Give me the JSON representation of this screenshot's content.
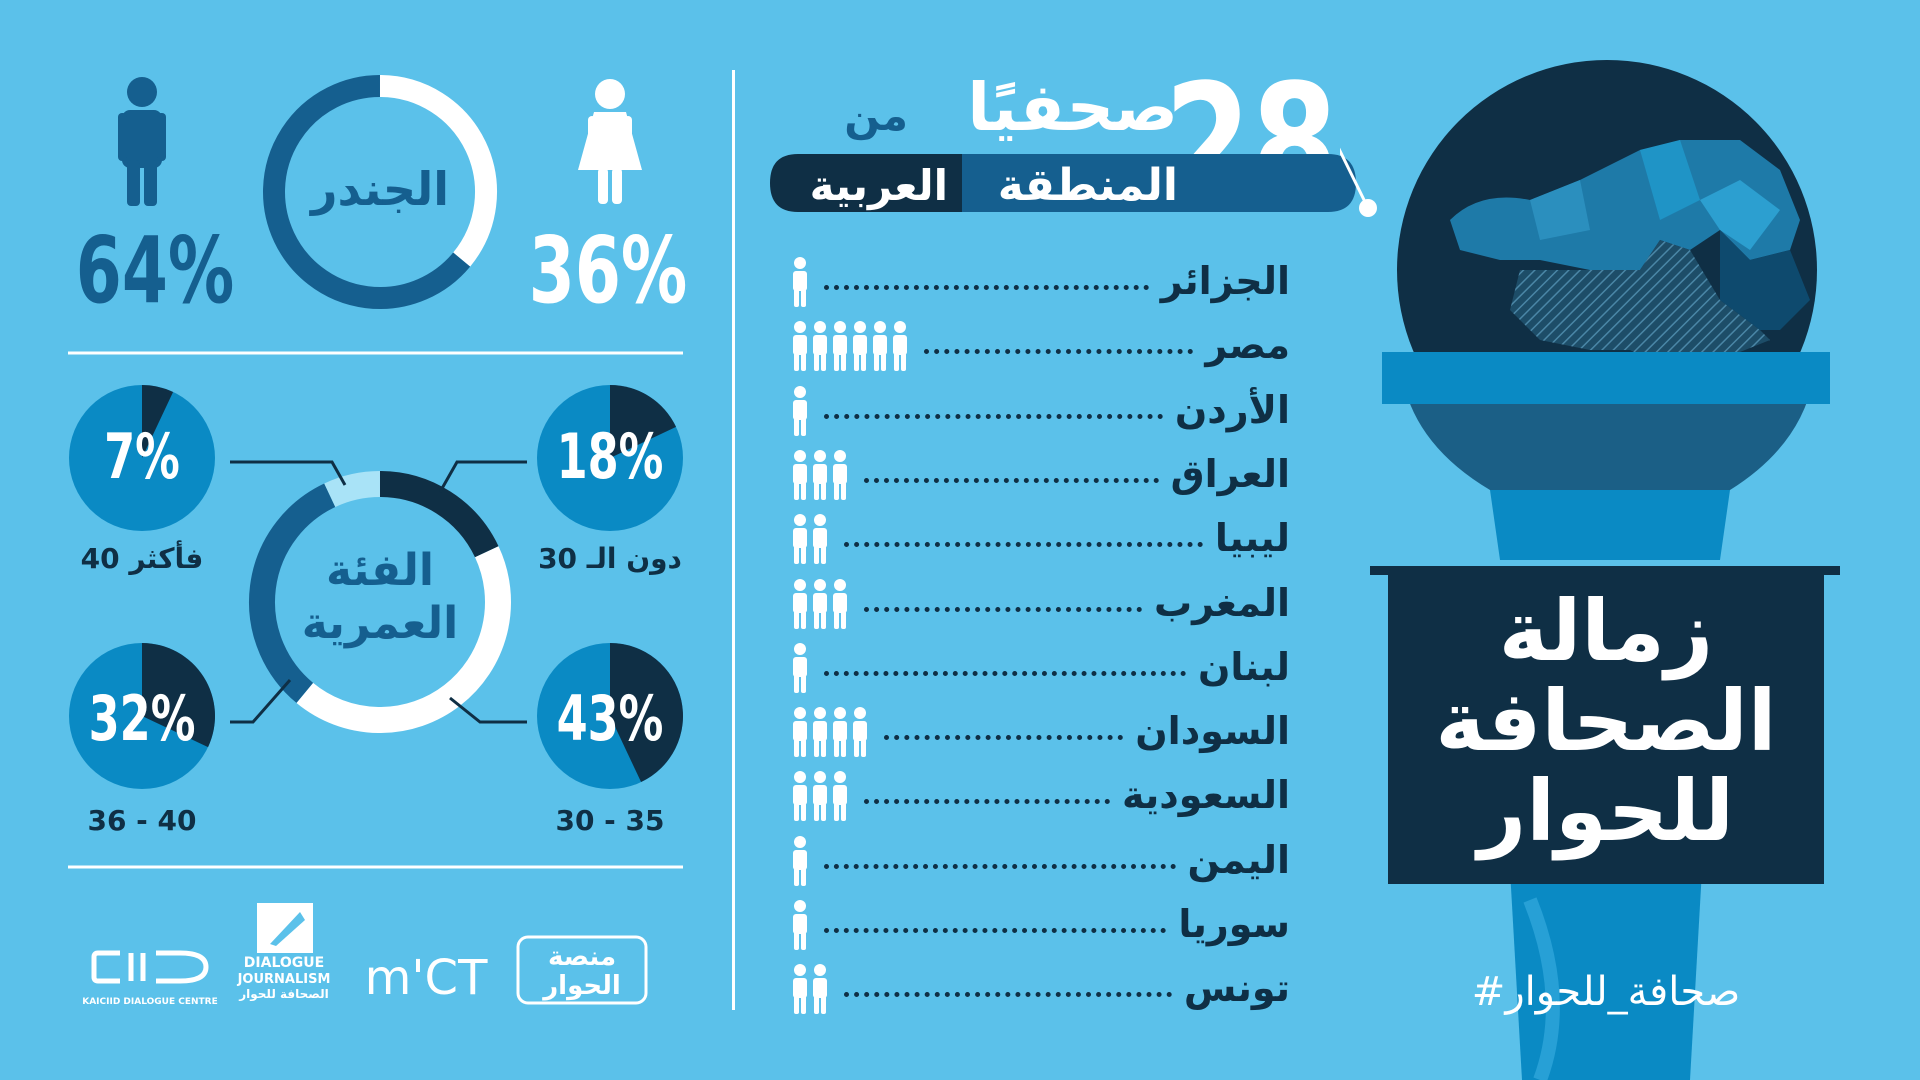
{
  "colors": {
    "background": "#5bc1ea",
    "dark_navy": "#0f2f45",
    "mid_blue": "#155f8f",
    "bright_blue": "#0a8ac4",
    "light_cyan": "#a9e3f7",
    "white": "#ffffff"
  },
  "headline": {
    "number": "28",
    "word": "صحفيًا",
    "prefix": "من",
    "region_a": "المنطقة",
    "region_b": "العربية"
  },
  "program": {
    "line1": "زمالة",
    "line2": "الصحافة",
    "line3": "للحوار",
    "hashtag": "#صحافة_للحوار"
  },
  "countries": [
    {
      "name": "الجزائر",
      "count": 1
    },
    {
      "name": "مصر",
      "count": 6
    },
    {
      "name": "الأردن",
      "count": 1
    },
    {
      "name": "العراق",
      "count": 3
    },
    {
      "name": "ليبيا",
      "count": 2
    },
    {
      "name": "المغرب",
      "count": 3
    },
    {
      "name": "لبنان",
      "count": 1
    },
    {
      "name": "السودان",
      "count": 4
    },
    {
      "name": "السعودية",
      "count": 3
    },
    {
      "name": "اليمن",
      "count": 1
    },
    {
      "name": "سوريا",
      "count": 1
    },
    {
      "name": "تونس",
      "count": 2
    }
  ],
  "gender": {
    "title": "الجندر",
    "male_label": "64%",
    "female_label": "36%"
  },
  "age": {
    "title_line1": "الفئة",
    "title_line2": "العمرية",
    "groups": [
      {
        "label": "دون الـ 30",
        "value_label": "18%"
      },
      {
        "label": "30 - 35",
        "value_label": "43%"
      },
      {
        "label": "36 - 40",
        "value_label": "32%"
      },
      {
        "label": "فأكثر 40",
        "value_label": "7%"
      }
    ]
  },
  "chart_data": [
    {
      "type": "pie",
      "title": "الجندر",
      "categories": [
        "female",
        "male"
      ],
      "values": [
        36,
        64
      ]
    },
    {
      "type": "pie",
      "title": "الفئة العمرية",
      "categories": [
        "دون الـ 30",
        "30 - 35",
        "36 - 40",
        "فأكثر 40"
      ],
      "values": [
        18,
        43,
        32,
        7
      ]
    }
  ],
  "logos": {
    "kaiciid_mark": "CIID",
    "kaiciid_caption": "KAICIID DIALOGUE CENTRE",
    "dj_line1": "DIALOGUE",
    "dj_line2": "JOURNALISM",
    "dj_line3": "الصحافة للحوار",
    "mict": "m'CT",
    "platform_line1": "منصة",
    "platform_line2": "الحوار"
  }
}
